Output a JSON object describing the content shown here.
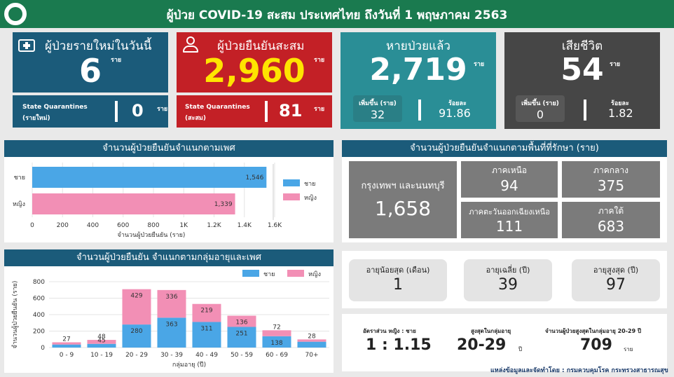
{
  "header": {
    "title": "ผู้ป่วย COVID-19 สะสม  ประเทศไทย ถึงวันที่ 1 พฤษภาคม 2563"
  },
  "colors": {
    "header": "#1a7a4f",
    "new": "#1b5b7a",
    "confirmed": "#c32026",
    "recovered": "#2a8e96",
    "deaths": "#464646",
    "male": "#4aa6e6",
    "female": "#f28fb5"
  },
  "new_cases": {
    "label": "ผู้ป่วยรายใหม่ในวันนี้",
    "value": "6",
    "unit": "ราย",
    "sq_label": "State Quarantines",
    "sq_sub": "(รายใหม่)",
    "sq_value": "0",
    "sq_unit": "ราย"
  },
  "confirmed": {
    "label": "ผู้ป่วยยืนยันสะสม",
    "value": "2,960",
    "unit": "ราย",
    "sq_label": "State Quarantines",
    "sq_sub": "(สะสม)",
    "sq_value": "81",
    "sq_unit": "ราย"
  },
  "recovered": {
    "label": "หายป่วยแล้ว",
    "value": "2,719",
    "unit": "ราย",
    "inc_label": "เพิ่มขึ้น (ราย)",
    "inc_value": "32",
    "pct_label": "ร้อยละ",
    "pct_value": "91.86"
  },
  "deaths": {
    "label": "เสียชีวิต",
    "value": "54",
    "unit": "ราย",
    "inc_label": "เพิ่มขึ้น (ราย)",
    "inc_value": "0",
    "pct_label": "ร้อยละ",
    "pct_value": "1.82"
  },
  "gender_panel": {
    "title": "จำนวนผู้ป่วยยืนยันจำแนกตามเพศ",
    "xlabel": "จำนวนผู้ป่วยยืนยัน (ราย)",
    "legend_male": "ชาย",
    "legend_female": "หญิง"
  },
  "region_panel": {
    "title": "จำนวนผู้ป่วยยืนยันจำแนกตามพื้นที่ที่รักษา (ราย)",
    "bangkok_label": "กรุงเทพฯ และนนทบุรี",
    "bangkok_value": "1,658",
    "north_label": "ภาคเหนือ",
    "north_value": "94",
    "central_label": "ภาคกลาง",
    "central_value": "375",
    "northeast_label": "ภาคตะวันออกเฉียงเหนือ",
    "northeast_value": "111",
    "south_label": "ภาคใต้",
    "south_value": "683"
  },
  "age_panel": {
    "title": "จำนวนผู้ป่วยยืนยัน จำแนกตามกลุ่มอายุและเพศ",
    "xlabel": "กลุ่มอายุ (ปี)",
    "ylabel": "จำนวนผู้ป่วยยืนยัน (ราย)",
    "legend_male": "ชาย",
    "legend_female": "หญิง"
  },
  "age_stats": {
    "min_label": "อายุน้อยสุด (เดือน)",
    "min_value": "1",
    "avg_label": "อายุเฉลี่ย (ปี)",
    "avg_value": "39",
    "max_label": "อายุสูงสุด (ปี)",
    "max_value": "97"
  },
  "bottom_stats": {
    "ratio_label": "อัตราส่วน  หญิง : ชาย",
    "ratio_value": "1 : 1.15",
    "group_label": "สูงสุดในกลุ่มอายุ",
    "group_value": "20-29",
    "group_unit": "ปี",
    "count_label": "จำนวนผู้ป่วยสูงสุดในกลุ่มอายุ 20-29 ปี",
    "count_value": "709",
    "count_unit": "ราย"
  },
  "source": "แหล่งข้อมูลและจัดทำโดย : กรมควบคุมโรค กระทรวงสาธารณสุข",
  "chart_data": [
    {
      "type": "bar",
      "orientation": "horizontal",
      "title": "จำนวนผู้ป่วยยืนยันจำแนกตามเพศ",
      "categories": [
        "ชาย",
        "หญิง"
      ],
      "values": [
        1546,
        1339
      ],
      "value_labels": [
        "1,546",
        "1,339"
      ],
      "xlabel": "จำนวนผู้ป่วยยืนยัน (ราย)",
      "xlim": [
        0,
        1600
      ],
      "xticks": [
        0,
        200,
        400,
        600,
        800,
        1000,
        1200,
        1400,
        1600
      ],
      "xtick_labels": [
        "0",
        "200",
        "400",
        "600",
        "800",
        "1K",
        "1.2K",
        "1.4K",
        "1.6K"
      ],
      "legend": "right"
    },
    {
      "type": "bar",
      "stacked": true,
      "title": "จำนวนผู้ป่วยยืนยัน จำแนกตามกลุ่มอายุและเพศ",
      "categories": [
        "0 - 9",
        "10 - 19",
        "20 - 29",
        "30 - 39",
        "40 - 49",
        "50 - 59",
        "60 - 69",
        "70+"
      ],
      "series": [
        {
          "name": "ชาย",
          "values": [
            37,
            45,
            280,
            363,
            311,
            251,
            138,
            71
          ]
        },
        {
          "name": "หญิง",
          "values": [
            27,
            48,
            429,
            336,
            219,
            136,
            72,
            28
          ]
        }
      ],
      "male_labels": [
        "",
        "45",
        "280",
        "363",
        "311",
        "251",
        "138",
        ""
      ],
      "female_labels": [
        "27",
        "48",
        "429",
        "336",
        "219",
        "136",
        "72",
        "28"
      ],
      "xlabel": "กลุ่มอายุ (ปี)",
      "ylabel": "จำนวนผู้ป่วยยืนยัน (ราย)",
      "ylim": [
        0,
        800
      ],
      "yticks": [
        0,
        200,
        400,
        600,
        800
      ],
      "legend": "top-right"
    }
  ]
}
